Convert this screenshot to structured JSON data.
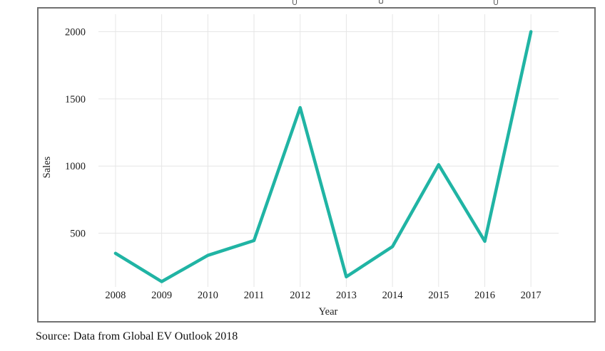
{
  "page": {
    "source_caption": "Source: Data from Global EV Outlook 2018"
  },
  "chart_data": {
    "type": "line",
    "x": [
      2008,
      2009,
      2010,
      2011,
      2012,
      2013,
      2014,
      2015,
      2016,
      2017
    ],
    "series": [
      {
        "name": "Sales",
        "values": [
          350,
          140,
          335,
          445,
          1435,
          175,
          400,
          1010,
          440,
          2000
        ]
      }
    ],
    "xlabel": "Year",
    "ylabel": "Sales",
    "xticks": [
      2008,
      2009,
      2010,
      2011,
      2012,
      2013,
      2014,
      2015,
      2016,
      2017
    ],
    "yticks": [
      500,
      1000,
      1500,
      2000
    ],
    "xlim": [
      2007.63,
      2017.6
    ],
    "ylim": [
      100,
      2130
    ],
    "grid": true,
    "legend": false,
    "line_color": "#20b4a4",
    "grid_color": "#e6e6e6",
    "panel_border": "none",
    "figure_border_color": "#717171",
    "text_color": "#1a1a1a"
  }
}
